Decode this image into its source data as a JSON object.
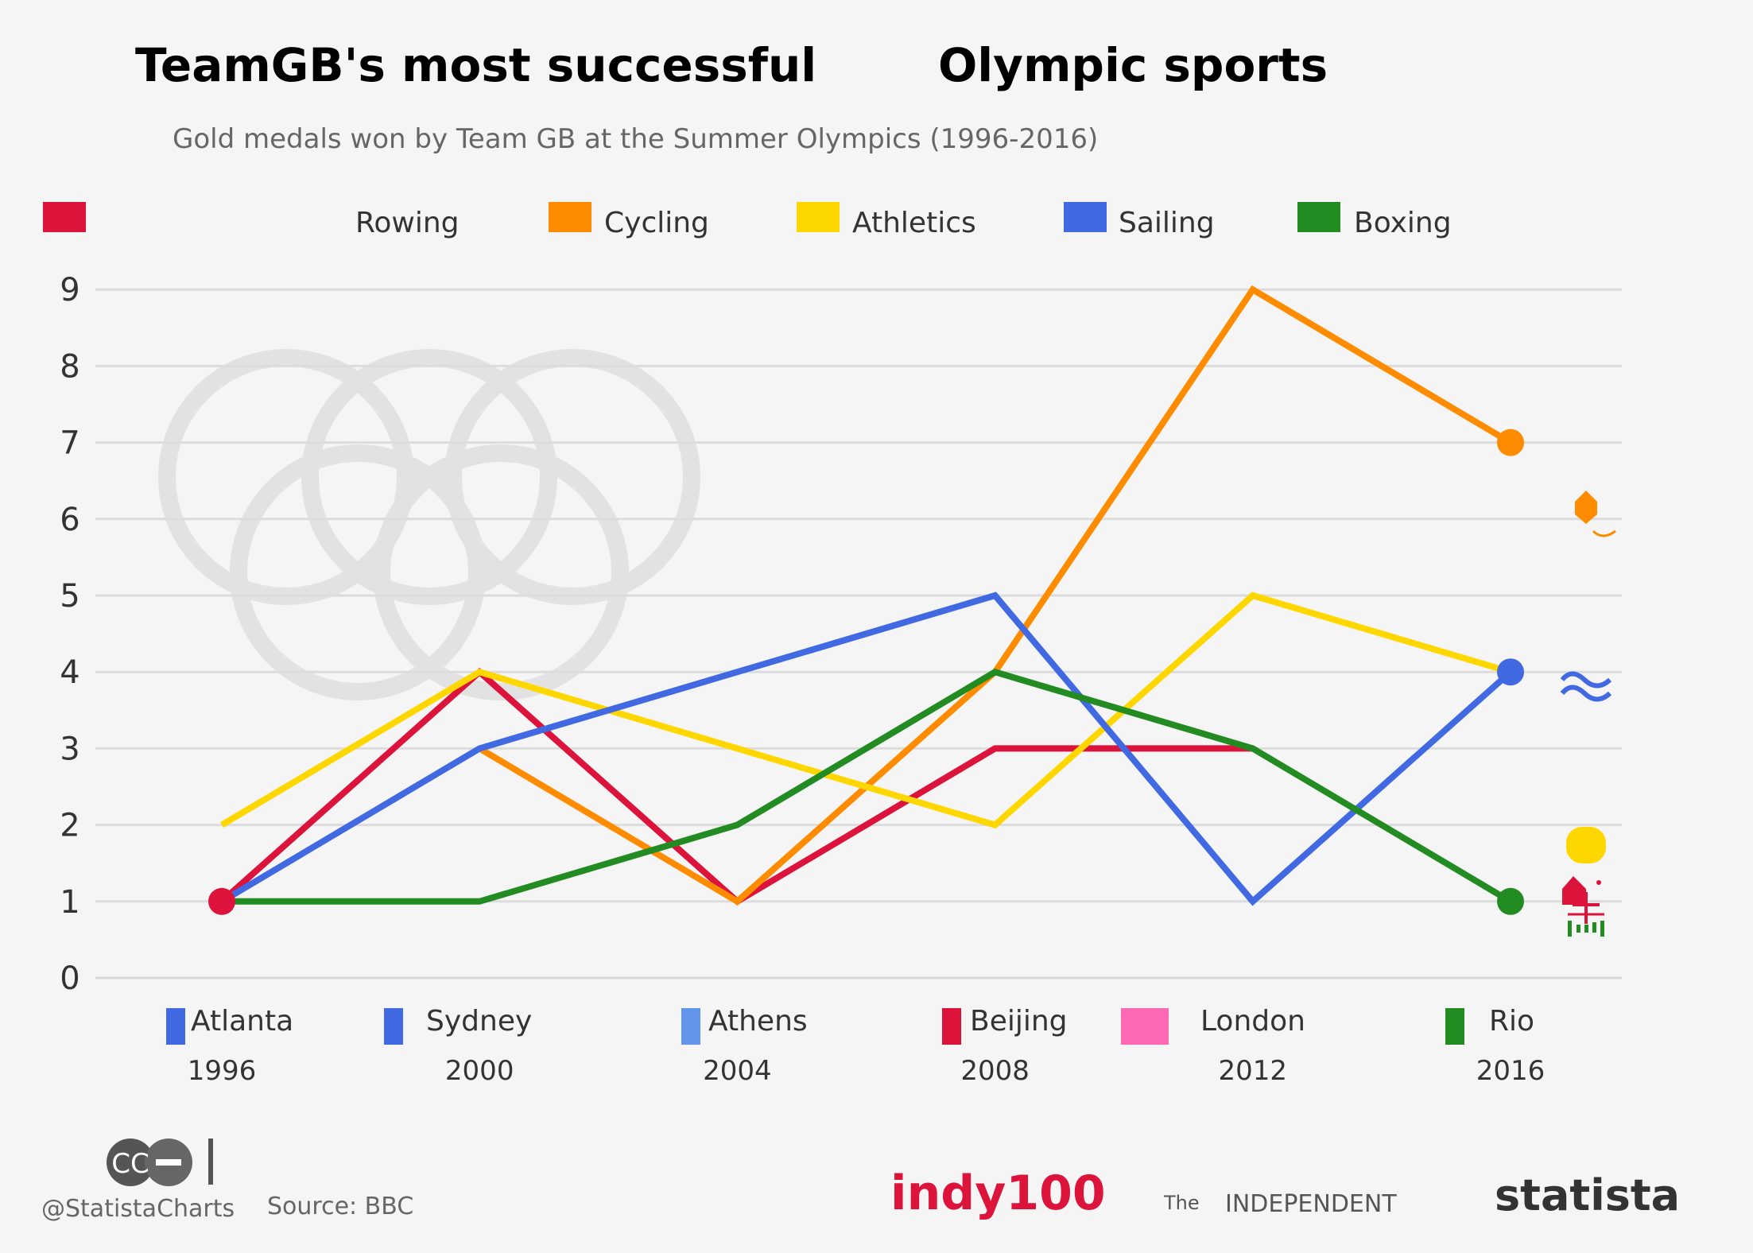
{
  "chart_data": {
    "type": "line",
    "title": "TeamGB's most successful      Olympic sports",
    "title_part1": "TeamGB's most successful",
    "title_part2": "Olympic sports",
    "subtitle": "Gold medals won by Team GB at the Summer Olympics (1996-2016)",
    "years": [
      "1996",
      "2000",
      "2004",
      "2008",
      "2012",
      "2016"
    ],
    "cities": [
      "Atlanta",
      "Sydney",
      "Athens",
      "Beijing",
      "London",
      "Rio"
    ],
    "city_colors": [
      "#4169e1",
      "#4169e1",
      "#6495ed",
      "#dc143c",
      "#ff69b4",
      "#228b22"
    ],
    "x": [
      1996,
      2000,
      2004,
      2008,
      2012,
      2016
    ],
    "ylim": [
      0,
      9
    ],
    "yticks": [
      0,
      1,
      2,
      3,
      4,
      5,
      6,
      7,
      8,
      9
    ],
    "grid": true,
    "legend_position": "top",
    "series": [
      {
        "name": "Rowing",
        "color": "#dc143c",
        "values": [
          1,
          4,
          1,
          3,
          3,
          null
        ],
        "end_marker": false,
        "start_marker": true
      },
      {
        "name": "Cycling",
        "color": "#ff8c00",
        "values": [
          null,
          3,
          1,
          4,
          9,
          7
        ],
        "end_marker": true,
        "start_marker": false
      },
      {
        "name": "Athletics",
        "color": "#ffd700",
        "values": [
          2,
          4,
          3,
          2,
          5,
          4
        ],
        "end_marker": false,
        "start_marker": false
      },
      {
        "name": "Sailing",
        "color": "#4169e1",
        "values": [
          1,
          3,
          4,
          5,
          1,
          4
        ],
        "end_marker": true,
        "start_marker": false
      },
      {
        "name": "Boxing",
        "color": "#228b22",
        "values": [
          1,
          1,
          2,
          4,
          3,
          1
        ],
        "end_marker": true,
        "start_marker": false
      }
    ],
    "sport_icons": [
      "cycling-icon",
      "sailing-icon",
      "athletics-icon",
      "rowing-icon",
      "boxing-icon"
    ],
    "watermark": "olympic-rings"
  },
  "footer": {
    "cc_badge": "CC",
    "handle": "@StatistaCharts",
    "source": "Source: BBC",
    "indy": "indy100",
    "the": "The",
    "independent": "INDEPENDENT",
    "statista": "statista"
  }
}
